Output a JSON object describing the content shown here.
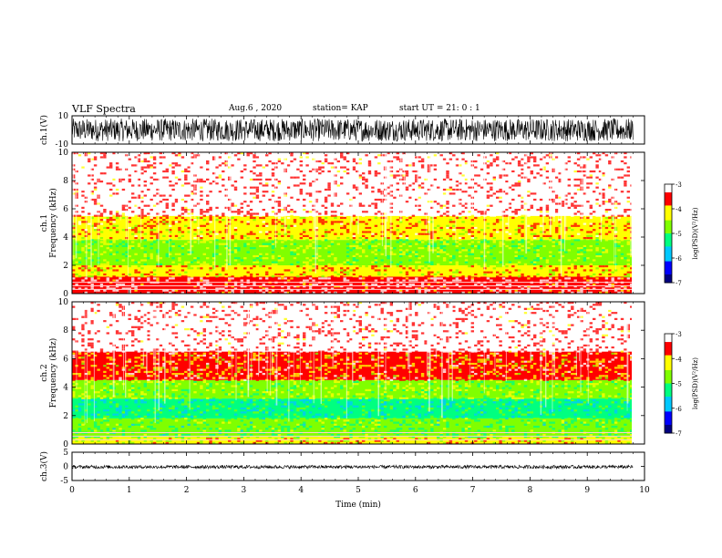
{
  "header": {
    "title": "VLF Spectra",
    "date": "Aug.6 , 2020",
    "station": "station= KAP",
    "start": "start UT = 21: 0 : 1"
  },
  "colors": {
    "axis": "#000000",
    "waveform": "#000000",
    "colormap": [
      "#000080",
      "#0000ff",
      "#00c8ff",
      "#00ff80",
      "#80ff00",
      "#ffff00",
      "#ff0000",
      "#ffffff"
    ]
  },
  "chart_data": [
    {
      "type": "line",
      "panel": "ch1-waveform",
      "ylabel": "ch.1(V)",
      "ylim": [
        -10,
        10
      ],
      "yticks": [
        "10",
        "-10"
      ],
      "xlim": [
        0,
        10
      ],
      "grid": false,
      "series": [
        {
          "envelope": [
            -8,
            8
          ]
        }
      ]
    },
    {
      "type": "heatmap",
      "panel": "ch1-spectrogram",
      "ylabel": "ch.1 Frequency (kHz)",
      "ylim": [
        0,
        10
      ],
      "yticks": [
        "0",
        "2",
        "4",
        "6",
        "8",
        "10"
      ],
      "xlim": [
        0,
        9.8
      ],
      "colorbar": {
        "label": "log(PSD)(V²/Hz)",
        "range": [
          -7,
          -3
        ],
        "ticks": [
          "-3",
          "-4",
          "-5",
          "-6",
          "-7"
        ]
      },
      "bands": [
        {
          "from_khz": 0,
          "to_khz": 1.2,
          "level": -3.3
        },
        {
          "from_khz": 1.2,
          "to_khz": 2.0,
          "level": -4.0
        },
        {
          "from_khz": 2.0,
          "to_khz": 3.8,
          "level": -4.6
        },
        {
          "from_khz": 3.8,
          "to_khz": 5.5,
          "level": -3.9
        },
        {
          "from_khz": 5.5,
          "to_khz": 10,
          "level": -3.2
        }
      ]
    },
    {
      "type": "heatmap",
      "panel": "ch2-spectrogram",
      "ylabel": "ch.2 Frequency (kHz)",
      "ylim": [
        0,
        10
      ],
      "yticks": [
        "0",
        "2",
        "4",
        "6",
        "8",
        "10"
      ],
      "xlim": [
        0,
        9.8
      ],
      "colorbar": {
        "label": "log(PSD)(V²/Hz)",
        "range": [
          -7,
          -3
        ],
        "ticks": [
          "-3",
          "-4",
          "-5",
          "-6",
          "-7"
        ]
      },
      "bands": [
        {
          "from_khz": 0,
          "to_khz": 0.5,
          "level": -4.2
        },
        {
          "from_khz": 0.5,
          "to_khz": 1.8,
          "level": -4.9
        },
        {
          "from_khz": 1.8,
          "to_khz": 3.2,
          "level": -5.4
        },
        {
          "from_khz": 3.2,
          "to_khz": 4.5,
          "level": -4.6
        },
        {
          "from_khz": 4.5,
          "to_khz": 6.5,
          "level": -3.8
        },
        {
          "from_khz": 6.5,
          "to_khz": 10,
          "level": -3.2
        }
      ]
    },
    {
      "type": "line",
      "panel": "ch3-waveform",
      "ylabel": "ch.3(V)",
      "ylim": [
        -5,
        5
      ],
      "yticks": [
        "5",
        "0",
        "-5"
      ],
      "xlim": [
        0,
        10
      ],
      "grid": false,
      "series": [
        {
          "envelope": [
            -0.8,
            0.4
          ]
        }
      ]
    }
  ],
  "xaxis": {
    "label": "Time (min)",
    "ticks": [
      "0",
      "1",
      "2",
      "3",
      "4",
      "5",
      "6",
      "7",
      "8",
      "9",
      "10"
    ]
  }
}
